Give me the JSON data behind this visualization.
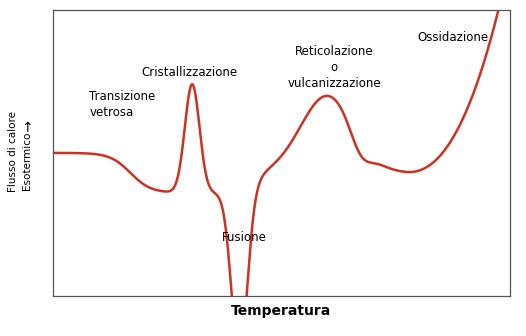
{
  "xlabel": "Temperatura",
  "ylabel_line1": "Flusso di calore",
  "ylabel_arrow": "→  Esotermico",
  "line_color": "#cc3322",
  "line_width": 1.8,
  "background_color": "#ffffff",
  "annotations": [
    {
      "text": "Transizione\nvetrosa",
      "xf": 0.08,
      "yf": 0.62,
      "ha": "left"
    },
    {
      "text": "Cristallizzazione",
      "xf": 0.3,
      "yf": 0.76,
      "ha": "center"
    },
    {
      "text": "Fusione",
      "xf": 0.42,
      "yf": 0.18,
      "ha": "center"
    },
    {
      "text": "Reticolazione\no\nvulcanizzazione",
      "xf": 0.615,
      "yf": 0.72,
      "ha": "center"
    },
    {
      "text": "Ossidazione",
      "xf": 0.875,
      "yf": 0.88,
      "ha": "center"
    }
  ]
}
